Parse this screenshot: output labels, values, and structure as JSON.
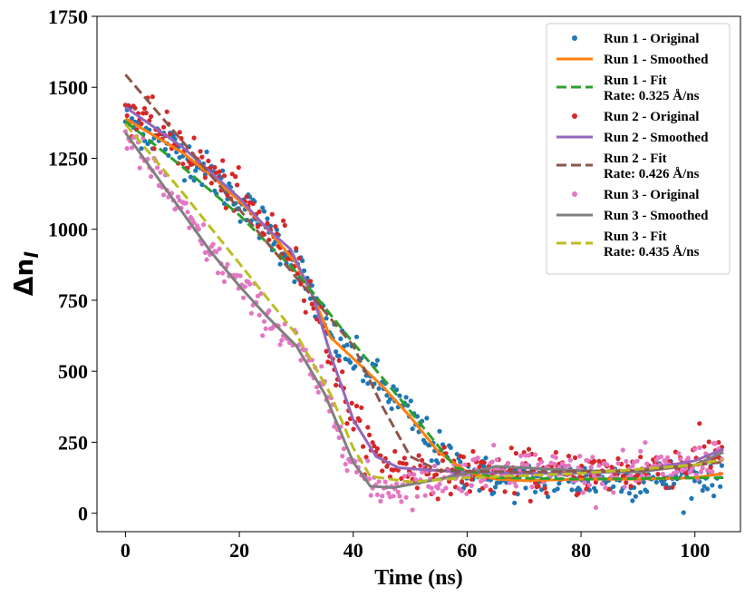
{
  "chart_data": {
    "type": "scatter",
    "xlabel": "Time (ns)",
    "ylabel_symbol": "Δn",
    "ylabel_subscript": "l",
    "xlim": [
      -5,
      108
    ],
    "ylim": [
      -65,
      1750
    ],
    "x_ticks": [
      0,
      20,
      40,
      60,
      80,
      100
    ],
    "y_ticks": [
      0,
      250,
      500,
      750,
      1000,
      1250,
      1500,
      1750
    ],
    "legend_position": "top-right",
    "legend": [
      {
        "label": "Run 1 - Original",
        "kind": "dot",
        "color": "#1f77b4"
      },
      {
        "label": "Run 1 - Smoothed",
        "kind": "line",
        "color": "#ff7f0e"
      },
      {
        "label": "Run 1 - Fit",
        "sublabel": "Rate: 0.325 Å/ns",
        "kind": "dash",
        "color": "#2ca02c"
      },
      {
        "label": "Run 2 - Original",
        "kind": "dot",
        "color": "#d62728"
      },
      {
        "label": "Run 2 - Smoothed",
        "kind": "line",
        "color": "#9467bd"
      },
      {
        "label": "Run 2 - Fit",
        "sublabel": "Rate: 0.426 Å/ns",
        "kind": "dash",
        "color": "#8c564b"
      },
      {
        "label": "Run 3 - Original",
        "kind": "dot",
        "color": "#e377c2"
      },
      {
        "label": "Run 3 - Smoothed",
        "kind": "line",
        "color": "#7f7f7f"
      },
      {
        "label": "Run 3 - Fit",
        "sublabel": "Rate: 0.435 Å/ns",
        "kind": "dash",
        "color": "#bcbd22"
      }
    ],
    "series": [
      {
        "name": "Run 1",
        "color_original": "#1f77b4",
        "color_smoothed": "#ff7f0e",
        "color_fit": "#2ca02c",
        "noise": 35,
        "x_end": 105,
        "smoothed": [
          [
            0,
            1390
          ],
          [
            5,
            1330
          ],
          [
            10,
            1270
          ],
          [
            15,
            1190
          ],
          [
            20,
            1100
          ],
          [
            25,
            1000
          ],
          [
            30,
            880
          ],
          [
            33,
            760
          ],
          [
            36,
            620
          ],
          [
            40,
            545
          ],
          [
            45,
            450
          ],
          [
            50,
            340
          ],
          [
            55,
            215
          ],
          [
            60,
            145
          ],
          [
            65,
            120
          ],
          [
            70,
            115
          ],
          [
            80,
            120
          ],
          [
            90,
            120
          ],
          [
            100,
            125
          ],
          [
            105,
            140
          ]
        ],
        "fit": [
          [
            0,
            1380
          ],
          [
            10,
            1220
          ],
          [
            20,
            1050
          ],
          [
            30,
            850
          ],
          [
            40,
            600
          ],
          [
            50,
            360
          ],
          [
            58,
            160
          ],
          [
            65,
            125
          ],
          [
            80,
            120
          ],
          [
            105,
            125
          ]
        ]
      },
      {
        "name": "Run 2",
        "color_original": "#d62728",
        "color_smoothed": "#9467bd",
        "color_fit": "#8c564b",
        "noise": 38,
        "x_end": 105,
        "smoothed": [
          [
            0,
            1430
          ],
          [
            5,
            1360
          ],
          [
            10,
            1290
          ],
          [
            15,
            1200
          ],
          [
            20,
            1110
          ],
          [
            25,
            1000
          ],
          [
            29,
            930
          ],
          [
            33,
            760
          ],
          [
            36,
            560
          ],
          [
            40,
            330
          ],
          [
            44,
            200
          ],
          [
            48,
            160
          ],
          [
            55,
            150
          ],
          [
            60,
            145
          ],
          [
            70,
            140
          ],
          [
            80,
            140
          ],
          [
            90,
            150
          ],
          [
            100,
            185
          ],
          [
            105,
            225
          ]
        ],
        "fit": [
          [
            0,
            1545
          ],
          [
            10,
            1310
          ],
          [
            20,
            1070
          ],
          [
            30,
            830
          ],
          [
            40,
            590
          ],
          [
            45,
            380
          ],
          [
            50,
            200
          ],
          [
            55,
            150
          ],
          [
            70,
            145
          ],
          [
            90,
            150
          ],
          [
            105,
            180
          ]
        ]
      },
      {
        "name": "Run 3",
        "color_original": "#e377c2",
        "color_smoothed": "#7f7f7f",
        "color_fit": "#bcbd22",
        "noise": 32,
        "x_end": 105,
        "smoothed": [
          [
            0,
            1340
          ],
          [
            5,
            1200
          ],
          [
            10,
            1060
          ],
          [
            15,
            920
          ],
          [
            20,
            800
          ],
          [
            25,
            690
          ],
          [
            30,
            590
          ],
          [
            35,
            420
          ],
          [
            40,
            180
          ],
          [
            43,
            95
          ],
          [
            47,
            90
          ],
          [
            55,
            120
          ],
          [
            60,
            140
          ],
          [
            65,
            165
          ],
          [
            70,
            160
          ],
          [
            80,
            150
          ],
          [
            90,
            145
          ],
          [
            100,
            170
          ],
          [
            105,
            215
          ]
        ],
        "fit": [
          [
            0,
            1370
          ],
          [
            10,
            1130
          ],
          [
            20,
            880
          ],
          [
            30,
            630
          ],
          [
            36,
            420
          ],
          [
            40,
            230
          ],
          [
            43,
            130
          ],
          [
            50,
            110
          ],
          [
            60,
            125
          ],
          [
            80,
            140
          ],
          [
            100,
            170
          ],
          [
            105,
            190
          ]
        ]
      }
    ]
  }
}
